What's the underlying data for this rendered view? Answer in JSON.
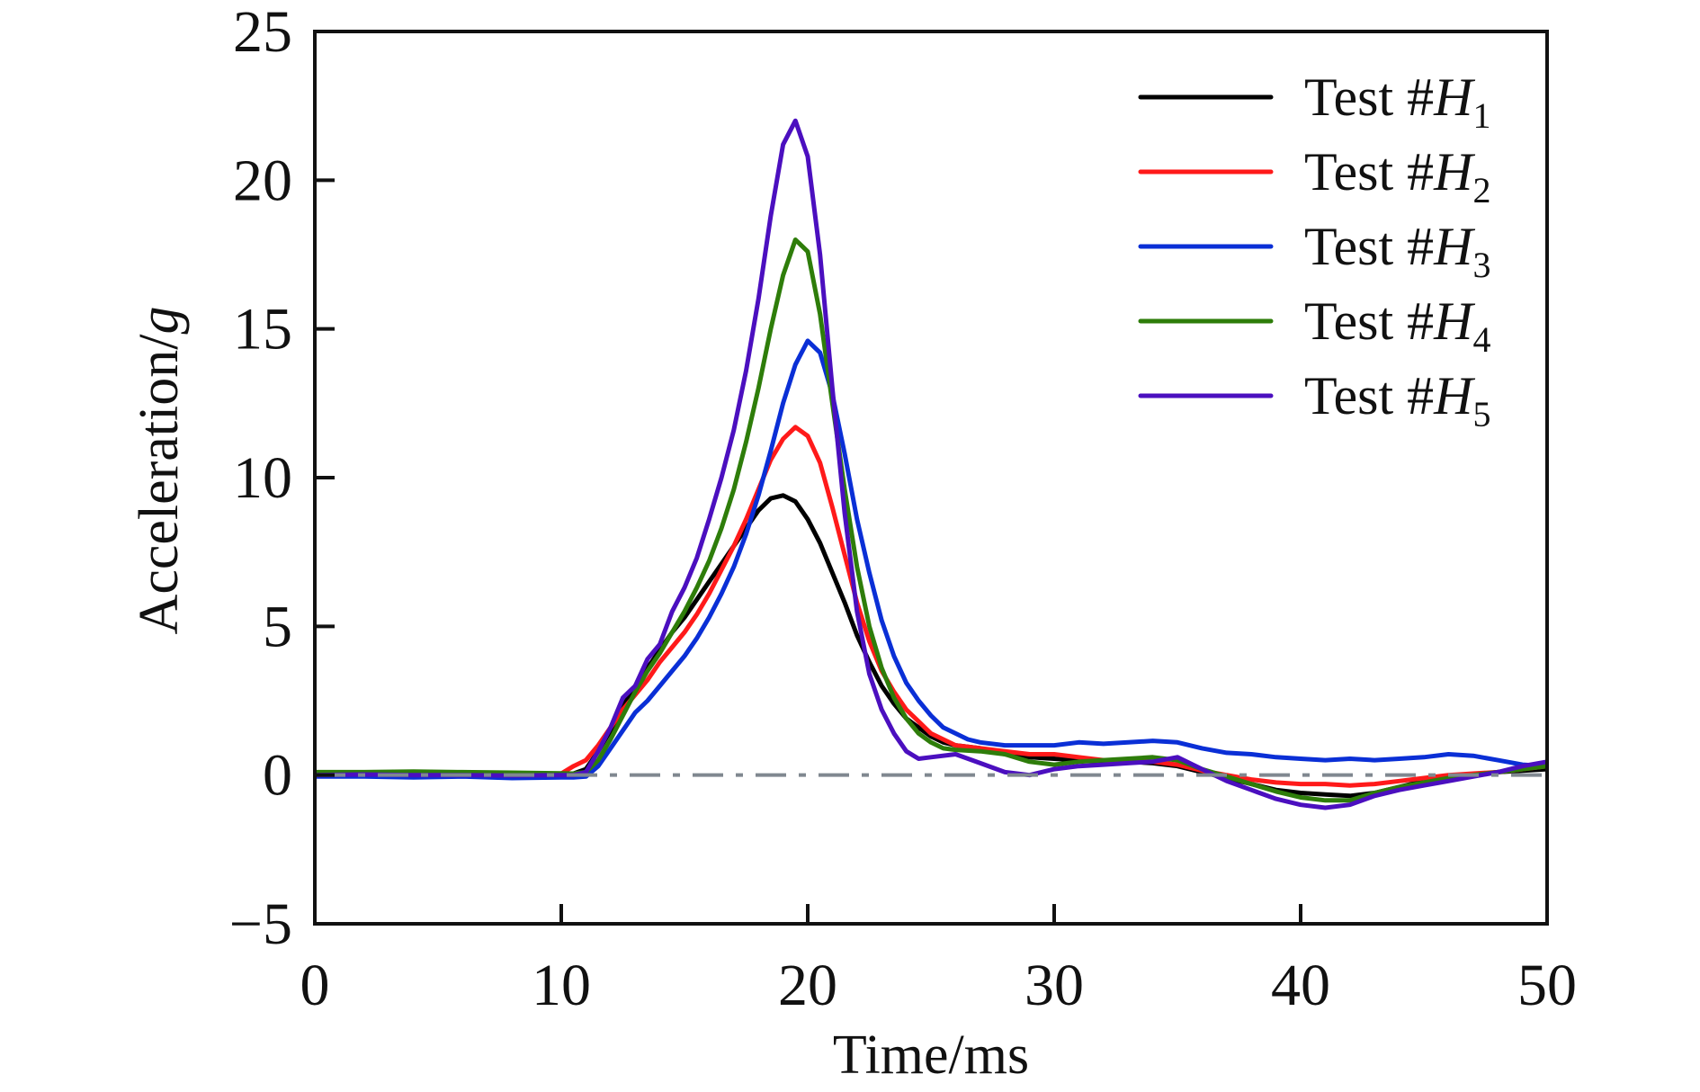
{
  "chart_data": {
    "type": "line",
    "title": "",
    "xlabel": "Time/ms",
    "ylabel_text": "Acceleration/",
    "ylabel_unit": "g",
    "xlim": [
      0,
      50
    ],
    "ylim": [
      -5,
      25
    ],
    "xticks": [
      0,
      10,
      20,
      30,
      40,
      50
    ],
    "xtick_labels": [
      "0",
      "10",
      "20",
      "30",
      "40",
      "50"
    ],
    "yticks": [
      -5,
      0,
      5,
      10,
      15,
      20,
      25
    ],
    "ytick_labels": [
      "−5",
      "0",
      "5",
      "10",
      "15",
      "20",
      "25"
    ],
    "grid": false,
    "legend_position": "top-right",
    "reference_line": {
      "y": 0,
      "style": "dash-dot",
      "color": "#808890"
    },
    "series": [
      {
        "name": "Test #H1",
        "prefix": "Test #",
        "italic": "H",
        "sub": "1",
        "color": "#000000",
        "t": [
          0,
          2,
          4,
          6,
          8,
          10,
          10.5,
          11,
          11.5,
          12,
          12.5,
          13,
          13.5,
          14,
          14.5,
          15,
          15.5,
          16,
          16.5,
          17,
          17.5,
          18,
          18.5,
          19,
          19.5,
          20,
          20.5,
          21,
          21.5,
          22,
          22.5,
          23,
          23.5,
          24,
          24.5,
          25,
          25.5,
          26,
          27,
          28,
          29,
          30,
          31,
          32,
          33,
          34,
          35,
          36,
          37,
          38,
          39,
          40,
          41,
          42,
          43,
          44,
          45,
          46,
          47,
          48,
          49,
          50
        ],
        "a": [
          0.05,
          0.08,
          0.05,
          0.03,
          0.02,
          0.02,
          0.05,
          0.2,
          0.8,
          1.5,
          2.3,
          3.0,
          3.6,
          4.2,
          4.8,
          5.3,
          5.9,
          6.5,
          7.1,
          7.7,
          8.3,
          8.9,
          9.3,
          9.4,
          9.2,
          8.6,
          7.8,
          6.8,
          5.8,
          4.7,
          3.8,
          3.0,
          2.4,
          1.9,
          1.6,
          1.3,
          1.1,
          1.0,
          0.9,
          0.7,
          0.6,
          0.55,
          0.5,
          0.45,
          0.45,
          0.4,
          0.3,
          0.1,
          -0.1,
          -0.3,
          -0.5,
          -0.6,
          -0.65,
          -0.7,
          -0.6,
          -0.4,
          -0.2,
          -0.1,
          0.0,
          0.1,
          0.15,
          0.2
        ]
      },
      {
        "name": "Test #H2",
        "prefix": "Test #",
        "italic": "H",
        "sub": "2",
        "color": "#ff1a1a",
        "t": [
          0,
          2,
          4,
          6,
          8,
          10,
          10.5,
          11,
          11.5,
          12,
          12.5,
          13,
          13.5,
          14,
          14.5,
          15,
          15.5,
          16,
          16.5,
          17,
          17.5,
          18,
          18.5,
          19,
          19.5,
          20,
          20.5,
          21,
          21.5,
          22,
          22.5,
          23,
          23.5,
          24,
          24.5,
          25,
          25.5,
          26,
          27,
          28,
          29,
          30,
          31,
          32,
          33,
          34,
          35,
          36,
          37,
          38,
          39,
          40,
          41,
          42,
          43,
          44,
          45,
          46,
          47,
          48,
          49,
          50
        ],
        "a": [
          0.05,
          0.05,
          0.05,
          0.03,
          0.03,
          0.05,
          0.3,
          0.5,
          1.0,
          1.6,
          2.2,
          2.7,
          3.2,
          3.8,
          4.3,
          4.8,
          5.4,
          6.1,
          6.9,
          7.7,
          8.6,
          9.6,
          10.6,
          11.3,
          11.7,
          11.4,
          10.5,
          9.0,
          7.4,
          5.8,
          4.5,
          3.5,
          2.8,
          2.2,
          1.8,
          1.4,
          1.2,
          1.0,
          0.9,
          0.8,
          0.7,
          0.7,
          0.6,
          0.5,
          0.45,
          0.45,
          0.35,
          0.15,
          0.0,
          -0.15,
          -0.25,
          -0.3,
          -0.3,
          -0.35,
          -0.3,
          -0.2,
          -0.1,
          0.0,
          0.05,
          0.1,
          0.2,
          0.3
        ]
      },
      {
        "name": "Test #H3",
        "prefix": "Test #",
        "italic": "H",
        "sub": "3",
        "color": "#0a2fd6",
        "t": [
          0,
          2,
          4,
          6,
          8,
          10,
          10.5,
          11,
          11.5,
          12,
          12.5,
          13,
          13.5,
          14,
          14.5,
          15,
          15.5,
          16,
          16.5,
          17,
          17.5,
          18,
          18.5,
          19,
          19.5,
          20,
          20.5,
          21,
          21.5,
          22,
          22.5,
          23,
          23.5,
          24,
          24.5,
          25,
          25.5,
          26,
          26.5,
          27,
          28,
          29,
          30,
          31,
          32,
          33,
          34,
          35,
          36,
          37,
          38,
          39,
          40,
          41,
          42,
          43,
          44,
          45,
          46,
          47,
          48,
          49,
          50
        ],
        "a": [
          -0.05,
          -0.05,
          -0.08,
          -0.05,
          -0.1,
          -0.08,
          -0.08,
          -0.05,
          0.3,
          0.9,
          1.5,
          2.1,
          2.5,
          3.0,
          3.5,
          4.0,
          4.6,
          5.3,
          6.1,
          7.0,
          8.1,
          9.4,
          10.9,
          12.5,
          13.8,
          14.6,
          14.2,
          12.8,
          10.8,
          8.6,
          6.8,
          5.2,
          4.0,
          3.1,
          2.5,
          2.0,
          1.6,
          1.4,
          1.2,
          1.1,
          1.0,
          1.0,
          1.0,
          1.1,
          1.05,
          1.1,
          1.15,
          1.1,
          0.9,
          0.75,
          0.7,
          0.6,
          0.55,
          0.5,
          0.55,
          0.5,
          0.55,
          0.6,
          0.7,
          0.65,
          0.5,
          0.35,
          0.3
        ]
      },
      {
        "name": "Test #H4",
        "prefix": "Test #",
        "italic": "H",
        "sub": "4",
        "color": "#2e7d0a",
        "t": [
          0,
          2,
          4,
          6,
          8,
          10,
          10.5,
          11,
          11.5,
          12,
          12.5,
          13,
          13.5,
          14,
          14.5,
          15,
          15.5,
          16,
          16.5,
          17,
          17.5,
          18,
          18.5,
          19,
          19.5,
          20,
          20.5,
          21,
          21.5,
          22,
          22.5,
          23,
          23.5,
          24,
          24.5,
          25,
          25.5,
          26,
          27,
          28,
          29,
          30,
          31,
          32,
          33,
          34,
          35,
          36,
          37,
          38,
          39,
          40,
          41,
          42,
          43,
          44,
          45,
          46,
          47,
          48,
          49,
          50
        ],
        "a": [
          0.1,
          0.1,
          0.12,
          0.1,
          0.08,
          0.06,
          0.05,
          0.1,
          0.5,
          1.2,
          2.0,
          2.8,
          3.5,
          4.1,
          4.8,
          5.5,
          6.3,
          7.2,
          8.3,
          9.6,
          11.2,
          13.0,
          15.0,
          16.8,
          18.0,
          17.6,
          15.5,
          12.5,
          9.6,
          7.0,
          5.0,
          3.6,
          2.6,
          1.9,
          1.4,
          1.1,
          0.9,
          0.85,
          0.8,
          0.7,
          0.45,
          0.35,
          0.45,
          0.5,
          0.55,
          0.6,
          0.5,
          0.2,
          -0.05,
          -0.3,
          -0.55,
          -0.75,
          -0.85,
          -0.85,
          -0.6,
          -0.4,
          -0.25,
          -0.1,
          0.0,
          0.1,
          0.2,
          0.3
        ]
      },
      {
        "name": "Test #H5",
        "prefix": "Test #",
        "italic": "H",
        "sub": "5",
        "color": "#4b0fbf",
        "t": [
          0,
          2,
          4,
          6,
          8,
          10,
          10.5,
          11,
          11.5,
          12,
          12.5,
          13,
          13.5,
          14,
          14.5,
          15,
          15.5,
          16,
          16.5,
          17,
          17.5,
          18,
          18.5,
          19,
          19.5,
          20,
          20.5,
          21,
          21.5,
          22,
          22.5,
          23,
          23.5,
          24,
          24.5,
          25,
          26,
          27,
          28,
          29,
          30,
          31,
          32,
          33,
          34,
          35,
          36,
          37,
          38,
          39,
          40,
          41,
          42,
          43,
          44,
          45,
          46,
          47,
          48,
          49,
          50
        ],
        "a": [
          0.0,
          0.02,
          0.0,
          0.0,
          -0.02,
          0.0,
          0.0,
          0.1,
          0.8,
          1.6,
          2.6,
          3.0,
          3.9,
          4.4,
          5.5,
          6.3,
          7.3,
          8.6,
          10.0,
          11.6,
          13.6,
          16.0,
          18.8,
          21.2,
          22.0,
          20.8,
          17.5,
          13.0,
          8.8,
          5.5,
          3.4,
          2.2,
          1.4,
          0.8,
          0.55,
          0.6,
          0.7,
          0.4,
          0.1,
          0.0,
          0.2,
          0.3,
          0.35,
          0.4,
          0.45,
          0.6,
          0.2,
          -0.2,
          -0.5,
          -0.8,
          -1.0,
          -1.1,
          -1.0,
          -0.7,
          -0.5,
          -0.35,
          -0.2,
          -0.05,
          0.1,
          0.3,
          0.45
        ]
      }
    ]
  }
}
